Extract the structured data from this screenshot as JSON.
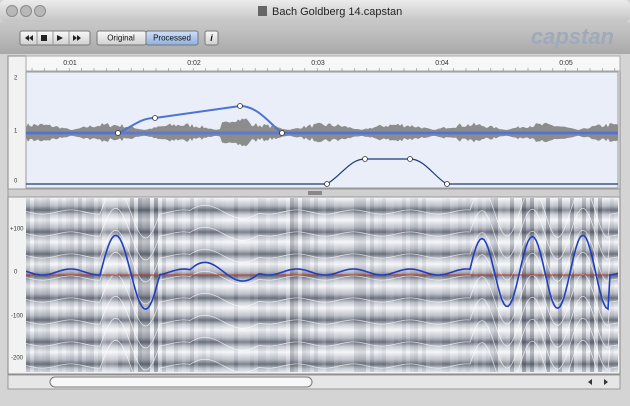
{
  "window": {
    "title": "Bach Goldberg 14.capstan"
  },
  "toolbar": {
    "buttons": [
      "Original",
      "Processed",
      "i"
    ],
    "logo": "capstan"
  },
  "ruler": {
    "labels": [
      "0:01",
      "0:02",
      "0:03",
      "0:04",
      "0:05"
    ]
  },
  "tempo_panel": {
    "axis_labels": [
      "2",
      "1",
      "0"
    ]
  },
  "pitch_panel": {
    "axis_labels": [
      "+100",
      "0",
      "-100",
      "-200"
    ]
  }
}
